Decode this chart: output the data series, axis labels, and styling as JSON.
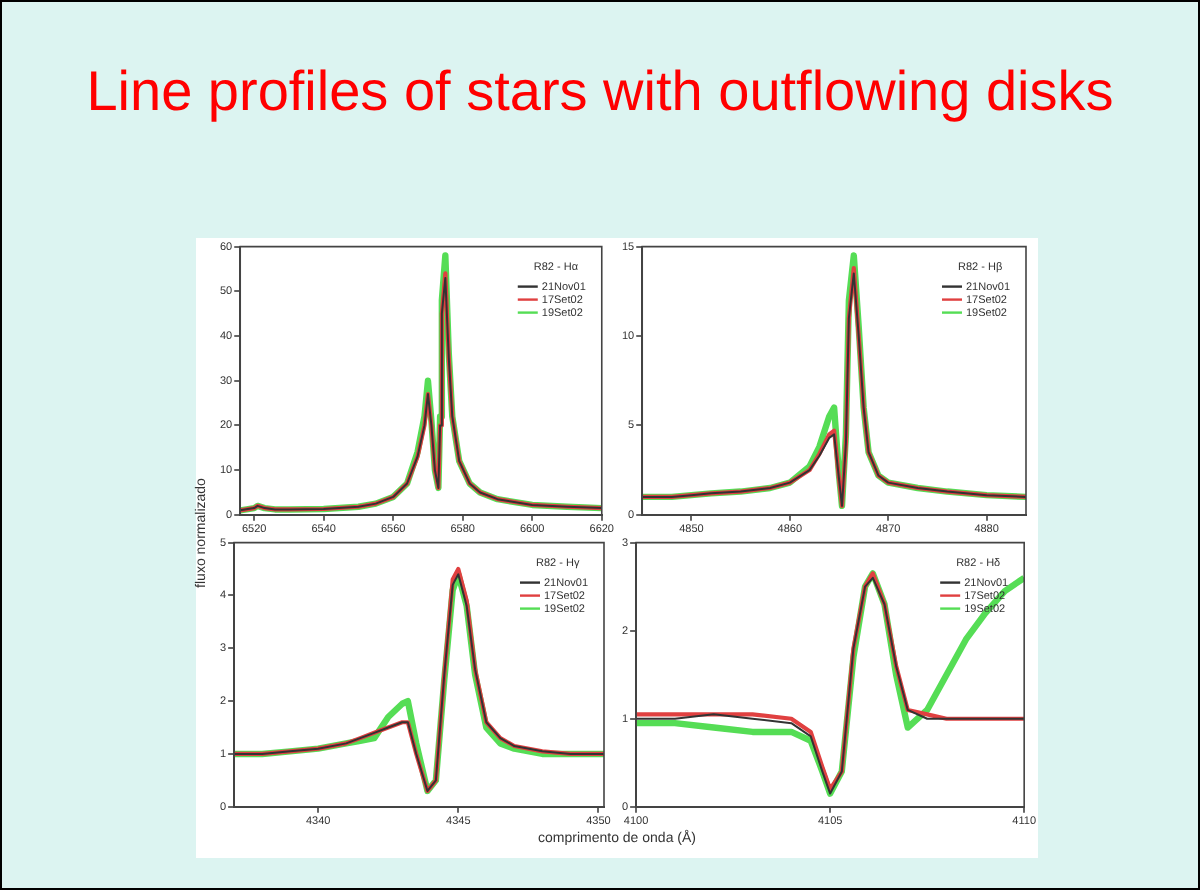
{
  "chart_data": [
    {
      "type": "other",
      "title": "Line profiles of stars with outflowing disks",
      "xlabel": "comprimento de onda (Å)",
      "ylabel": "fluxo normalizado"
    },
    {
      "type": "line",
      "title": "R82 - Hα",
      "legend": "top right",
      "xlim": [
        6516,
        6620
      ],
      "xticks": [
        6520,
        6540,
        6560,
        6580,
        6600,
        6620
      ],
      "ylim": [
        0,
        60
      ],
      "yticks": [
        0,
        10,
        20,
        30,
        40,
        50,
        60
      ],
      "x": [
        6516,
        6520,
        6521,
        6523,
        6526,
        6530,
        6540,
        6550,
        6555,
        6560,
        6564,
        6567,
        6569,
        6570,
        6571,
        6572,
        6573,
        6573.5,
        6574,
        6575,
        6576,
        6577,
        6579,
        6582,
        6585,
        6590,
        6600,
        6610,
        6620
      ],
      "series": [
        {
          "name": "21Nov01",
          "color": "#333333",
          "values": [
            1,
            1.5,
            2,
            1.5,
            1.2,
            1.2,
            1.3,
            1.8,
            2.5,
            4,
            7,
            13,
            20,
            27,
            20,
            10,
            6,
            20,
            45,
            53,
            35,
            22,
            12,
            7,
            5,
            3.5,
            2.2,
            1.8,
            1.5
          ]
        },
        {
          "name": "17Set02",
          "color": "#e04040",
          "values": [
            1,
            1.5,
            2,
            1.5,
            1.2,
            1.2,
            1.3,
            1.8,
            2.5,
            4,
            7,
            13,
            20,
            27,
            20,
            10,
            6,
            20,
            45,
            54,
            35,
            22,
            12,
            7,
            5,
            3.5,
            2.2,
            1.8,
            1.5
          ]
        },
        {
          "name": "19Set02",
          "color": "#55dd55",
          "values": [
            1,
            1.5,
            2,
            1.5,
            1.2,
            1.2,
            1.3,
            1.8,
            2.5,
            4,
            7,
            14,
            22,
            30,
            21,
            10,
            6,
            22,
            48,
            58,
            36,
            22,
            12,
            7,
            5,
            3.5,
            2.2,
            1.8,
            1.5
          ]
        }
      ]
    },
    {
      "type": "line",
      "title": "R82 - Hβ",
      "legend": "top right",
      "xlim": [
        4845,
        4884
      ],
      "xticks": [
        4850,
        4860,
        4870,
        4880
      ],
      "ylim": [
        0,
        15
      ],
      "yticks": [
        0,
        5,
        10,
        15
      ],
      "x": [
        4845,
        4848,
        4850,
        4852,
        4855,
        4858,
        4860,
        4862,
        4863,
        4864,
        4864.5,
        4865,
        4865.3,
        4865.7,
        4866,
        4866.5,
        4867,
        4867.5,
        4868,
        4869,
        4870,
        4873,
        4876,
        4880,
        4884
      ],
      "series": [
        {
          "name": "21Nov01",
          "color": "#333333",
          "values": [
            1,
            1,
            1.1,
            1.2,
            1.3,
            1.5,
            1.8,
            2.5,
            3.3,
            4.3,
            4.5,
            2,
            0.5,
            4,
            11,
            13.5,
            10,
            6,
            3.5,
            2.2,
            1.8,
            1.5,
            1.3,
            1.1,
            1
          ]
        },
        {
          "name": "17Set02",
          "color": "#e04040",
          "values": [
            1,
            1,
            1.1,
            1.2,
            1.3,
            1.5,
            1.8,
            2.5,
            3.4,
            4.5,
            4.7,
            2,
            0.5,
            4,
            11,
            13.8,
            10,
            6,
            3.5,
            2.2,
            1.8,
            1.5,
            1.3,
            1.1,
            1
          ]
        },
        {
          "name": "19Set02",
          "color": "#55dd55",
          "values": [
            1,
            1,
            1.1,
            1.2,
            1.3,
            1.5,
            1.8,
            2.7,
            3.8,
            5.5,
            6,
            2.2,
            0.5,
            4.5,
            12,
            14.5,
            10.5,
            6,
            3.5,
            2.2,
            1.8,
            1.5,
            1.3,
            1.1,
            1
          ]
        }
      ]
    },
    {
      "type": "line",
      "title": "R82 - Hγ",
      "legend": "top right",
      "xlim": [
        4337,
        4350.2
      ],
      "xticks": [
        4340,
        4345,
        4350
      ],
      "ylim": [
        0,
        5
      ],
      "yticks": [
        0,
        1,
        2,
        3,
        4,
        5
      ],
      "x": [
        4337,
        4338,
        4339,
        4340,
        4341,
        4341.5,
        4342,
        4342.5,
        4343,
        4343.2,
        4343.5,
        4343.9,
        4344.2,
        4344.5,
        4344.8,
        4345,
        4345.3,
        4345.6,
        4346,
        4346.5,
        4347,
        4348,
        4349,
        4350.2
      ],
      "series": [
        {
          "name": "21Nov01",
          "color": "#333333",
          "values": [
            1,
            1,
            1.05,
            1.1,
            1.2,
            1.3,
            1.4,
            1.5,
            1.6,
            1.6,
            1,
            0.3,
            0.5,
            2.5,
            4.2,
            4.4,
            3.8,
            2.6,
            1.6,
            1.3,
            1.15,
            1.05,
            1,
            1
          ]
        },
        {
          "name": "17Set02",
          "color": "#e04040",
          "values": [
            1,
            1,
            1.05,
            1.1,
            1.2,
            1.3,
            1.4,
            1.5,
            1.6,
            1.6,
            1,
            0.3,
            0.5,
            2.5,
            4.3,
            4.5,
            3.9,
            2.6,
            1.6,
            1.3,
            1.15,
            1.05,
            1,
            1
          ]
        },
        {
          "name": "19Set02",
          "color": "#55dd55",
          "values": [
            1,
            1,
            1.05,
            1.1,
            1.2,
            1.25,
            1.3,
            1.7,
            1.95,
            2,
            1.2,
            0.3,
            0.5,
            2.4,
            4.1,
            4.4,
            3.8,
            2.5,
            1.5,
            1.2,
            1.1,
            1,
            1,
            1
          ]
        }
      ]
    },
    {
      "type": "line",
      "title": "R82 - Hδ",
      "legend": "top right",
      "xlim": [
        4100,
        4110
      ],
      "xticks": [
        4100,
        4105,
        4110
      ],
      "ylim": [
        0,
        3
      ],
      "yticks": [
        0,
        1,
        2,
        3
      ],
      "x": [
        4100,
        4101,
        4102,
        4103,
        4104,
        4104.5,
        4104.8,
        4105,
        4105.3,
        4105.6,
        4105.9,
        4106.1,
        4106.4,
        4106.7,
        4107,
        4107.5,
        4108,
        4108.5,
        4109,
        4109.5,
        4110
      ],
      "series": [
        {
          "name": "21Nov01",
          "color": "#333333",
          "values": [
            1,
            1,
            1.05,
            1,
            0.95,
            0.8,
            0.4,
            0.15,
            0.4,
            1.8,
            2.5,
            2.6,
            2.3,
            1.6,
            1.1,
            1,
            1,
            1,
            1,
            1,
            1
          ]
        },
        {
          "name": "17Set02",
          "color": "#e04040",
          "values": [
            1.05,
            1.05,
            1.05,
            1.05,
            1,
            0.85,
            0.45,
            0.2,
            0.4,
            1.8,
            2.5,
            2.65,
            2.3,
            1.6,
            1.1,
            1.05,
            1,
            1,
            1,
            1,
            1
          ]
        },
        {
          "name": "19Set02",
          "color": "#55dd55",
          "values": [
            0.95,
            0.95,
            0.9,
            0.85,
            0.85,
            0.75,
            0.4,
            0.15,
            0.4,
            1.7,
            2.5,
            2.65,
            2.3,
            1.5,
            0.9,
            1.1,
            1.5,
            1.9,
            2.2,
            2.45,
            2.6
          ]
        }
      ]
    }
  ]
}
